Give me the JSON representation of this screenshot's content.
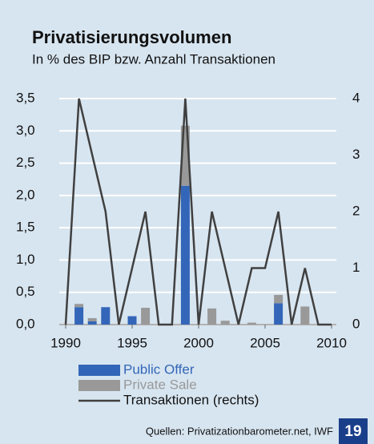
{
  "chart_data": {
    "type": "bar",
    "title": "Privatisierungsvolumen",
    "subtitle": "In % des BIP bzw. Anzahl Transaktionen",
    "x": [
      1990,
      1991,
      1992,
      1993,
      1994,
      1995,
      1996,
      1997,
      1998,
      1999,
      2000,
      2001,
      2002,
      2003,
      2004,
      2005,
      2006,
      2007,
      2008,
      2009,
      2010
    ],
    "series": [
      {
        "name": "Public Offer",
        "type": "bar",
        "color": "#3366b8",
        "values": [
          0,
          0.27,
          0.05,
          0.27,
          0,
          0.13,
          0,
          0,
          0,
          2.15,
          0,
          0,
          0,
          0,
          0,
          0,
          0.33,
          0,
          0,
          0,
          0
        ]
      },
      {
        "name": "Private Sale",
        "type": "bar",
        "color": "#999999",
        "values": [
          0,
          0.05,
          0.05,
          0,
          0,
          0,
          0.26,
          0,
          0,
          0.93,
          0,
          0.25,
          0.06,
          0,
          0.03,
          0,
          0.13,
          0,
          0.28,
          0,
          0
        ]
      },
      {
        "name": "Transaktionen (rechts)",
        "type": "line",
        "axis": "y2",
        "color": "#404040",
        "values": [
          0,
          4,
          3,
          2,
          0,
          1,
          2,
          0,
          0,
          4,
          0,
          2,
          1,
          0,
          1,
          1,
          2,
          0,
          1,
          0,
          0
        ]
      }
    ],
    "xlim": [
      1990,
      2010
    ],
    "xticks": [
      1990,
      1995,
      2000,
      2005,
      2010
    ],
    "ylim": [
      0,
      3.5
    ],
    "yticks": [
      {
        "value": 0,
        "label": "0,0"
      },
      {
        "value": 0.5,
        "label": "0,5"
      },
      {
        "value": 1,
        "label": "1,0"
      },
      {
        "value": 1.5,
        "label": "1,5"
      },
      {
        "value": 2,
        "label": "2,0"
      },
      {
        "value": 2.5,
        "label": "2,5"
      },
      {
        "value": 3,
        "label": "3,0"
      },
      {
        "value": 3.5,
        "label": "3,5"
      }
    ],
    "y2lim": [
      0,
      4
    ],
    "y2ticks": [
      0,
      1,
      2,
      3,
      4
    ],
    "grid": true
  },
  "footer": {
    "source": "Quellen: Privatizationbarometer.net, IWF",
    "page": "19"
  }
}
